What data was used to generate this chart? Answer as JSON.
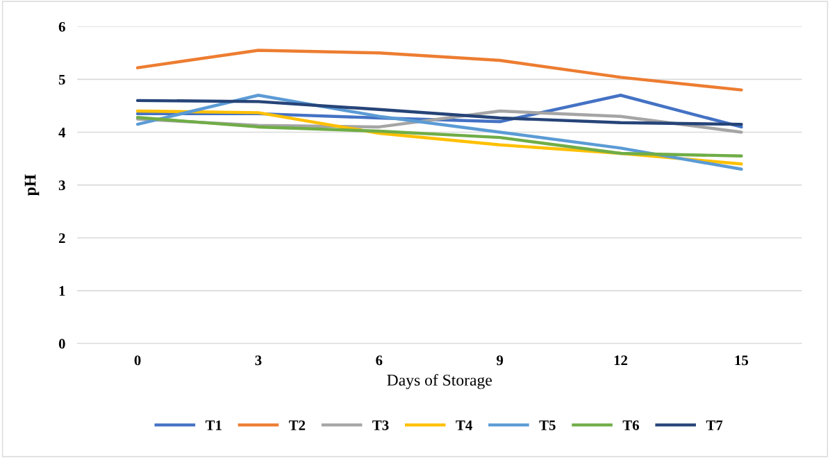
{
  "chart_data": {
    "type": "line",
    "xlabel": "Days of Storage",
    "ylabel": "pH",
    "categories": [
      "0",
      "3",
      "6",
      "9",
      "12",
      "15"
    ],
    "series": [
      {
        "name": "T1",
        "color": "#4472c4",
        "values": [
          4.35,
          4.35,
          4.27,
          4.2,
          4.7,
          4.1
        ]
      },
      {
        "name": "T2",
        "color": "#ed7d31",
        "values": [
          5.22,
          5.55,
          5.5,
          5.36,
          5.04,
          4.8
        ]
      },
      {
        "name": "T3",
        "color": "#a5a5a5",
        "values": [
          4.25,
          4.13,
          4.1,
          4.4,
          4.3,
          4.0
        ]
      },
      {
        "name": "T4",
        "color": "#ffc000",
        "values": [
          4.4,
          4.37,
          3.98,
          3.76,
          3.6,
          3.4
        ]
      },
      {
        "name": "T5",
        "color": "#5b9bd5",
        "values": [
          4.15,
          4.7,
          4.3,
          4.0,
          3.7,
          3.3
        ]
      },
      {
        "name": "T6",
        "color": "#70ad47",
        "values": [
          4.28,
          4.1,
          4.02,
          3.9,
          3.6,
          3.55
        ]
      },
      {
        "name": "T7",
        "color": "#264478",
        "values": [
          4.6,
          4.58,
          4.43,
          4.27,
          4.18,
          4.15
        ]
      }
    ],
    "ylim": [
      0,
      6
    ],
    "yticks": [
      0,
      1,
      2,
      3,
      4,
      5,
      6
    ],
    "grid": "y",
    "legend": "bottom",
    "marker": "none",
    "line_style": "solid"
  }
}
